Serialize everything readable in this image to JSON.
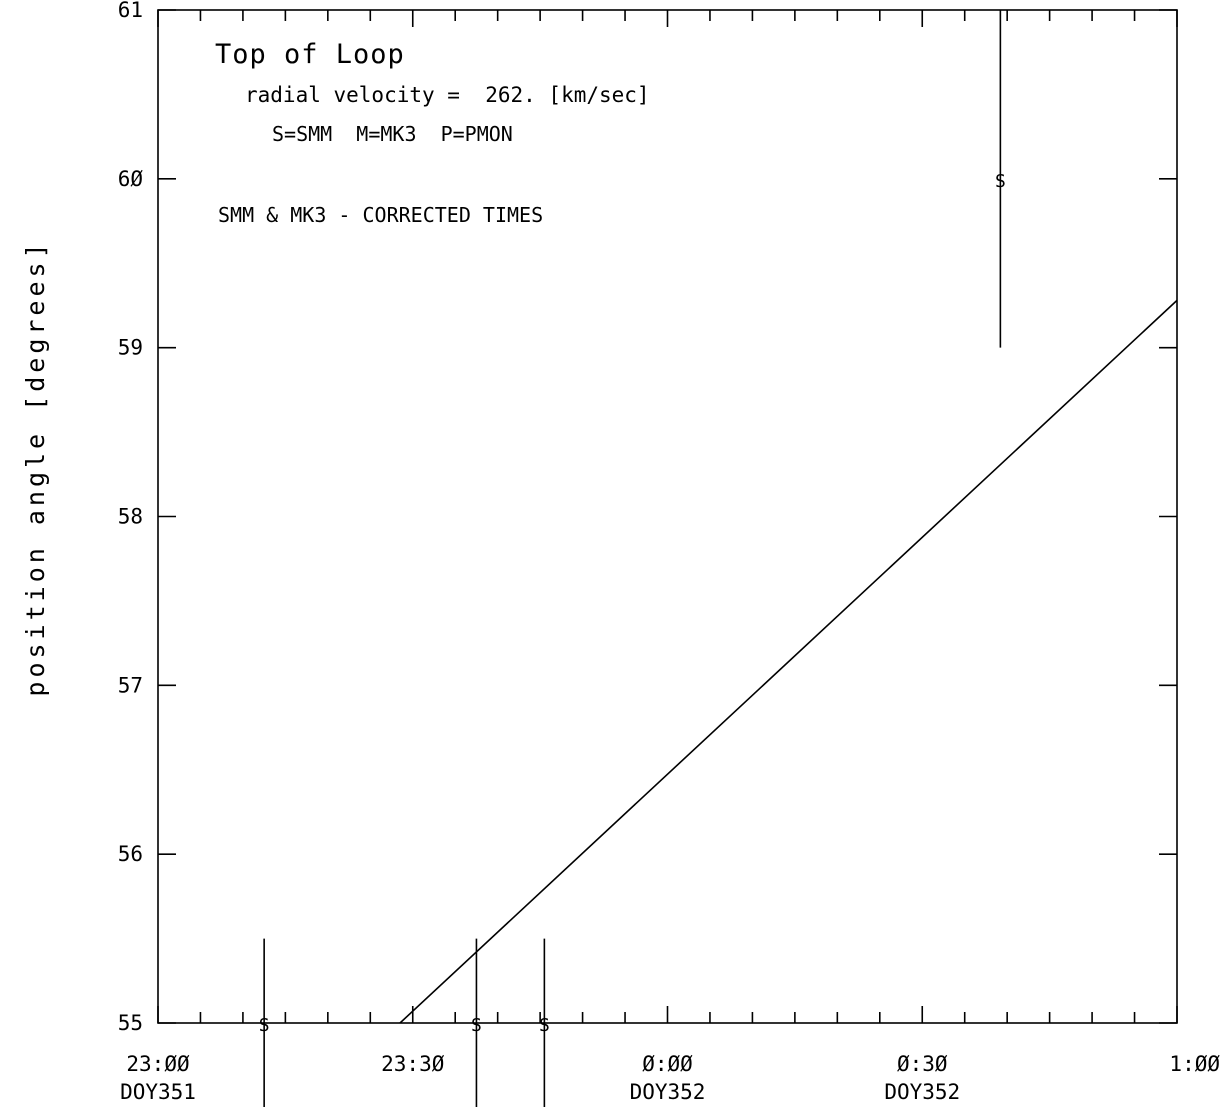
{
  "chart_data": {
    "type": "line",
    "title": "Top of Loop",
    "annotations": {
      "velocity": "radial velocity =  262. [km/sec]",
      "key": "S=SMM  M=MK3  P=PMON",
      "note": "SMM & MK3 - CORRECTED TIMES"
    },
    "ylabel": "position angle [degrees]",
    "xlabel": "",
    "x_unit": "minutes after 23:00 DOY351",
    "xlim": [
      0,
      120
    ],
    "ylim": [
      55,
      61
    ],
    "y_tick_labels": [
      {
        "value": 55,
        "label": "55"
      },
      {
        "value": 56,
        "label": "56"
      },
      {
        "value": 57,
        "label": "57"
      },
      {
        "value": 58,
        "label": "58"
      },
      {
        "value": 59,
        "label": "59"
      },
      {
        "value": 60,
        "label": "6Ø"
      },
      {
        "value": 61,
        "label": "61"
      }
    ],
    "x_tick_labels": [
      {
        "value": 0,
        "time": "23:ØØ",
        "day": "DOY351"
      },
      {
        "value": 30,
        "time": "23:3Ø",
        "day": ""
      },
      {
        "value": 60,
        "time": "Ø:ØØ",
        "day": "DOY352"
      },
      {
        "value": 90,
        "time": "Ø:3Ø",
        "day": "DOY352"
      },
      {
        "value": 120,
        "time": "1:ØØ",
        "day": ""
      }
    ],
    "minor_tick_step": 5,
    "fit_line": {
      "x": [
        28.5,
        120
      ],
      "y": [
        55.0,
        59.28
      ]
    },
    "points": [
      {
        "symbol": "S",
        "x": 12.5,
        "y": 55.0,
        "y_err_low": 54.5,
        "y_err_high": 55.5
      },
      {
        "symbol": "S",
        "x": 37.5,
        "y": 55.0,
        "y_err_low": 54.5,
        "y_err_high": 55.5
      },
      {
        "symbol": "S",
        "x": 45.5,
        "y": 55.0,
        "y_err_low": 54.5,
        "y_err_high": 55.5
      },
      {
        "symbol": "S",
        "x": 99.2,
        "y": 60.0,
        "y_err_low": 59.0,
        "y_err_high": 61.0
      }
    ]
  }
}
